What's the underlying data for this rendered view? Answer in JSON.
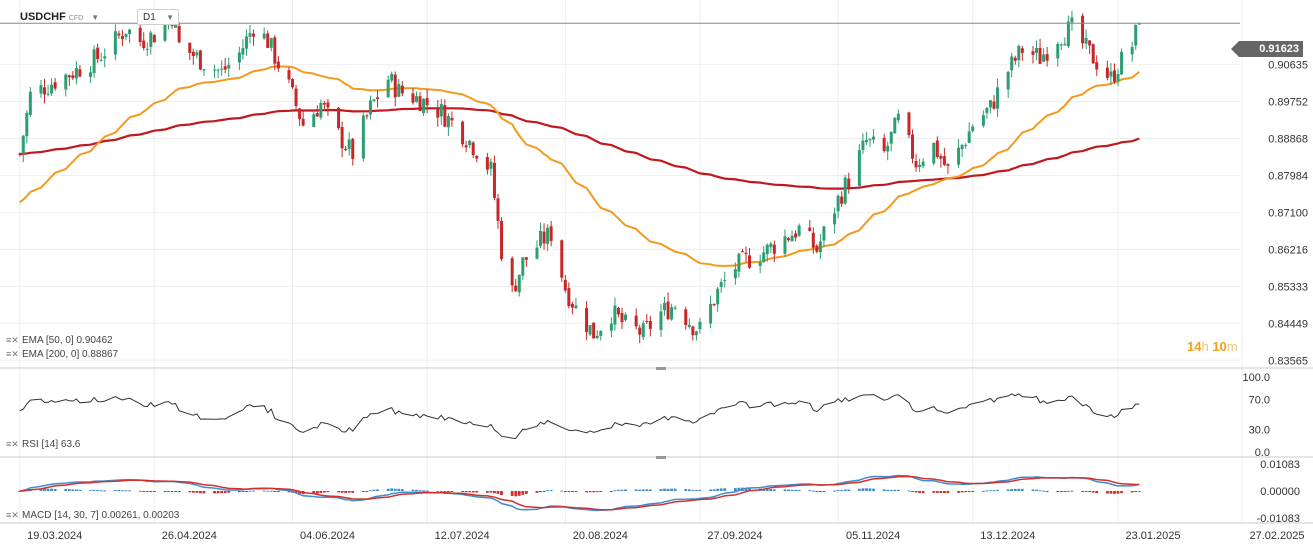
{
  "header": {
    "symbol": "USDCHF",
    "symbol_tag": "CFD",
    "timeframe": "D1"
  },
  "current_price": "0.91623",
  "countdown": {
    "hours": "14",
    "hours_unit": "h",
    "minutes": "10",
    "minutes_unit": "m"
  },
  "legends": {
    "ema50": "EMA [50, 0] 0.90462",
    "ema200": "EMA [200, 0] 0.88867",
    "rsi": "RSI [14] 63.6",
    "macd": "MACD [14, 30, 7] 0.00261, 0.00203"
  },
  "colors": {
    "up": "#2e9e72",
    "down": "#c62828",
    "ema50": "#f39a1d",
    "ema200": "#c0181e",
    "macd_line": "#3c8ed0",
    "signal_line": "#d32f2f",
    "rsi_line": "#333333"
  },
  "chart_data": {
    "type": "candlestick",
    "instrument": "USDCHF",
    "timeframe": "D1",
    "price_ticks": [
      "0.90635",
      "0.89752",
      "0.88868",
      "0.87984",
      "0.87100",
      "0.86216",
      "0.85333",
      "0.84449",
      "0.83565"
    ],
    "price_ylim": [
      0.8338,
      0.9218
    ],
    "x_ticks": [
      "19.03.2024",
      "26.04.2024",
      "04.06.2024",
      "12.07.2024",
      "20.08.2024",
      "27.09.2024",
      "05.11.2024",
      "13.12.2024",
      "23.01.2025",
      "27.02.2025"
    ],
    "close_points": [
      {
        "date": "2024-03-19",
        "close": 0.885
      },
      {
        "date": "2024-03-22",
        "close": 0.899
      },
      {
        "date": "2024-03-28",
        "close": 0.902
      },
      {
        "date": "2024-04-04",
        "close": 0.905
      },
      {
        "date": "2024-04-10",
        "close": 0.908
      },
      {
        "date": "2024-04-15",
        "close": 0.912
      },
      {
        "date": "2024-04-18",
        "close": 0.915
      },
      {
        "date": "2024-04-22",
        "close": 0.912
      },
      {
        "date": "2024-04-26",
        "close": 0.9135
      },
      {
        "date": "2024-05-01",
        "close": 0.918
      },
      {
        "date": "2024-05-03",
        "close": 0.911
      },
      {
        "date": "2024-05-09",
        "close": 0.9075
      },
      {
        "date": "2024-05-15",
        "close": 0.9045
      },
      {
        "date": "2024-05-20",
        "close": 0.909
      },
      {
        "date": "2024-05-24",
        "close": 0.9155
      },
      {
        "date": "2024-05-28",
        "close": 0.912
      },
      {
        "date": "2024-06-03",
        "close": 0.901
      },
      {
        "date": "2024-06-07",
        "close": 0.892
      },
      {
        "date": "2024-06-12",
        "close": 0.897
      },
      {
        "date": "2024-06-17",
        "close": 0.8895
      },
      {
        "date": "2024-06-21",
        "close": 0.885
      },
      {
        "date": "2024-06-26",
        "close": 0.896
      },
      {
        "date": "2024-07-01",
        "close": 0.903
      },
      {
        "date": "2024-07-04",
        "close": 0.9
      },
      {
        "date": "2024-07-10",
        "close": 0.898
      },
      {
        "date": "2024-07-16",
        "close": 0.895
      },
      {
        "date": "2024-07-22",
        "close": 0.89
      },
      {
        "date": "2024-07-26",
        "close": 0.886
      },
      {
        "date": "2024-07-30",
        "close": 0.881
      },
      {
        "date": "2024-08-02",
        "close": 0.862
      },
      {
        "date": "2024-08-05",
        "close": 0.852
      },
      {
        "date": "2024-08-08",
        "close": 0.859
      },
      {
        "date": "2024-08-13",
        "close": 0.864
      },
      {
        "date": "2024-08-16",
        "close": 0.866
      },
      {
        "date": "2024-08-20",
        "close": 0.853
      },
      {
        "date": "2024-08-23",
        "close": 0.848
      },
      {
        "date": "2024-08-28",
        "close": 0.842
      },
      {
        "date": "2024-09-02",
        "close": 0.847
      },
      {
        "date": "2024-09-06",
        "close": 0.844
      },
      {
        "date": "2024-09-11",
        "close": 0.842
      },
      {
        "date": "2024-09-16",
        "close": 0.847
      },
      {
        "date": "2024-09-20",
        "close": 0.849
      },
      {
        "date": "2024-09-25",
        "close": 0.844
      },
      {
        "date": "2024-09-27",
        "close": 0.843
      },
      {
        "date": "2024-10-02",
        "close": 0.852
      },
      {
        "date": "2024-10-07",
        "close": 0.858
      },
      {
        "date": "2024-10-11",
        "close": 0.86
      },
      {
        "date": "2024-10-16",
        "close": 0.862
      },
      {
        "date": "2024-10-21",
        "close": 0.865
      },
      {
        "date": "2024-10-25",
        "close": 0.867
      },
      {
        "date": "2024-10-30",
        "close": 0.862
      },
      {
        "date": "2024-11-05",
        "close": 0.874
      },
      {
        "date": "2024-11-08",
        "close": 0.879
      },
      {
        "date": "2024-11-13",
        "close": 0.888
      },
      {
        "date": "2024-11-18",
        "close": 0.885
      },
      {
        "date": "2024-11-22",
        "close": 0.893
      },
      {
        "date": "2024-11-27",
        "close": 0.883
      },
      {
        "date": "2024-12-02",
        "close": 0.887
      },
      {
        "date": "2024-12-06",
        "close": 0.881
      },
      {
        "date": "2024-12-10",
        "close": 0.887
      },
      {
        "date": "2024-12-13",
        "close": 0.892
      },
      {
        "date": "2024-12-18",
        "close": 0.896
      },
      {
        "date": "2024-12-23",
        "close": 0.905
      },
      {
        "date": "2024-12-27",
        "close": 0.91
      },
      {
        "date": "2025-01-01",
        "close": 0.908
      },
      {
        "date": "2025-01-06",
        "close": 0.913
      },
      {
        "date": "2025-01-10",
        "close": 0.915
      },
      {
        "date": "2025-01-14",
        "close": 0.91
      },
      {
        "date": "2025-01-17",
        "close": 0.907
      },
      {
        "date": "2025-01-21",
        "close": 0.903
      },
      {
        "date": "2025-01-23",
        "close": 0.906
      },
      {
        "date": "2025-01-27",
        "close": 0.911
      },
      {
        "date": "2025-01-29",
        "close": 0.9162
      }
    ],
    "ema50": {
      "name": "EMA [50, 0]",
      "last": 0.90462
    },
    "ema200": {
      "name": "EMA [200, 0]",
      "last": 0.88867
    },
    "rsi": {
      "name": "RSI [14]",
      "last": 63.6,
      "ticks": [
        "100.0",
        "70.0",
        "30.0",
        "0.0"
      ],
      "ylim": [
        0,
        100
      ]
    },
    "macd": {
      "name": "MACD [14, 30, 7]",
      "macd_last": 0.00261,
      "signal_last": 0.00203,
      "ticks": [
        "0.01083",
        "0.00000",
        "-0.01083"
      ]
    }
  }
}
